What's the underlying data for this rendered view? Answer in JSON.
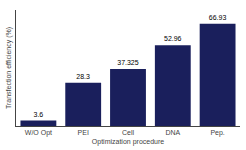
{
  "chart_data": {
    "type": "bar",
    "categories": [
      "W/O Opt",
      "PEI",
      "Cell",
      "DNA",
      "Pep."
    ],
    "values": [
      3.6,
      28.3,
      37.325,
      52.96,
      66.93
    ],
    "color": "#1a1f5c",
    "xlabel": "Optimization procedure",
    "ylabel": "Transfection efficiency (%)",
    "ylim": [
      0,
      76
    ],
    "data_labels": true,
    "tick_labels": "x",
    "grid": false
  }
}
